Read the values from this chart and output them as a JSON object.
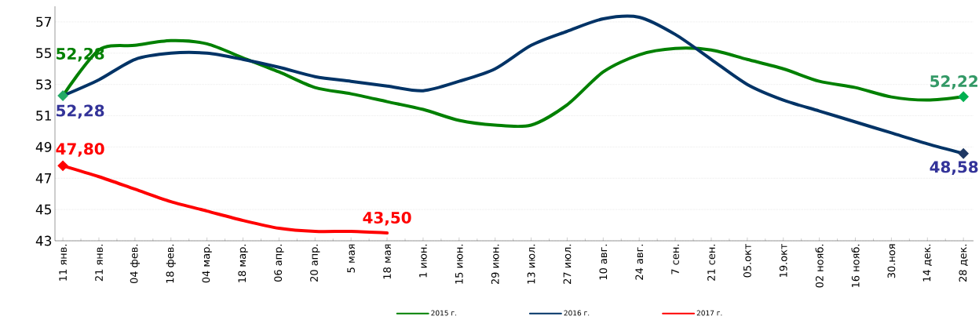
{
  "chart_data": {
    "type": "line",
    "categories": [
      "11 янв.",
      "21 янв.",
      "04 фев.",
      "18 фев.",
      "04 мар.",
      "18 мар.",
      "06 апр.",
      "20 апр.",
      "5 мая",
      "18 мая",
      "1 июн.",
      "15 июн.",
      "29 июн.",
      "13 июл.",
      "27 июл.",
      "10 авг.",
      "24 авг.",
      "7 сен.",
      "21 сен.",
      "05.окт",
      "19.окт",
      "02 нояб.",
      "16 нояб.",
      "30.ноя",
      "14 дек.",
      "28 дек."
    ],
    "series": [
      {
        "name": "2015 г.",
        "color": "#008000",
        "values": [
          52.28,
          55.2,
          55.5,
          55.8,
          55.6,
          54.7,
          53.8,
          52.8,
          52.4,
          51.9,
          51.4,
          50.7,
          50.4,
          50.4,
          51.7,
          53.8,
          54.9,
          55.3,
          55.2,
          54.6,
          54.0,
          53.2,
          52.8,
          52.2,
          52.0,
          52.22
        ]
      },
      {
        "name": "2016 г.",
        "color": "#003366",
        "values": [
          52.28,
          53.3,
          54.6,
          55.0,
          55.0,
          54.6,
          54.1,
          53.5,
          53.2,
          52.9,
          52.6,
          53.2,
          54.0,
          55.5,
          56.4,
          57.2,
          57.3,
          56.2,
          54.6,
          53.0,
          52.0,
          51.3,
          50.6,
          49.9,
          49.2,
          48.58
        ]
      },
      {
        "name": "2017 г.",
        "color": "#ff0000",
        "values": [
          47.8,
          47.1,
          46.3,
          45.5,
          44.9,
          44.3,
          43.8,
          43.6,
          43.6,
          43.5,
          null,
          null,
          null,
          null,
          null,
          null,
          null,
          null,
          null,
          null,
          null,
          null,
          null,
          null,
          null,
          null
        ]
      }
    ],
    "ylim": [
      43,
      58
    ],
    "yticks": [
      43,
      45,
      47,
      49,
      51,
      53,
      55,
      57
    ],
    "grid": "y",
    "legend": "bottom",
    "annotations": [
      {
        "text": "52,28",
        "x": "11 янв.",
        "y": 52.28
      },
      {
        "text": "52,28",
        "x": "11 янв.",
        "y": 52.28
      },
      {
        "text": "47,80",
        "x": "11 янв.",
        "y": 47.8
      },
      {
        "text": "43,50",
        "x": "18 мая",
        "y": 43.5
      },
      {
        "text": "52,22",
        "x": "28 дек.",
        "y": 52.22
      },
      {
        "text": "48,58",
        "x": "28 дек.",
        "y": 48.58
      }
    ]
  }
}
